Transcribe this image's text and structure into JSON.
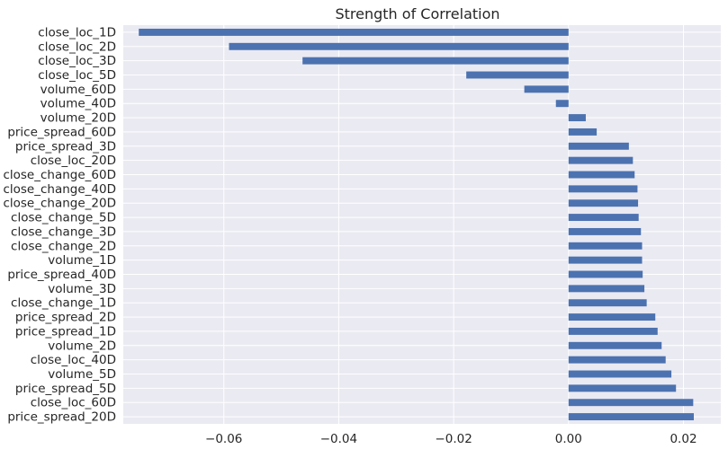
{
  "chart_data": {
    "type": "bar",
    "orientation": "horizontal",
    "title": "Strength of Correlation",
    "xlabel": "",
    "ylabel": "",
    "xlim": [
      -0.0775,
      0.0265
    ],
    "xticks": [
      -0.06,
      -0.04,
      -0.02,
      0.0,
      0.02
    ],
    "xtick_labels": [
      "−0.06",
      "−0.04",
      "−0.02",
      "0.00",
      "0.02"
    ],
    "grid": true,
    "legend": "none",
    "bar_color": "#4c72b0",
    "background_color": "#eaeaf2",
    "grid_color": "#ffffff",
    "categories": [
      "close_loc_1D",
      "close_loc_2D",
      "close_loc_3D",
      "close_loc_5D",
      "volume_60D",
      "volume_40D",
      "volume_20D",
      "price_spread_60D",
      "price_spread_3D",
      "close_loc_20D",
      "close_change_60D",
      "close_change_40D",
      "close_change_20D",
      "close_change_5D",
      "close_change_3D",
      "close_change_2D",
      "volume_1D",
      "price_spread_40D",
      "volume_3D",
      "close_change_1D",
      "price_spread_2D",
      "price_spread_1D",
      "volume_2D",
      "close_loc_40D",
      "volume_5D",
      "price_spread_5D",
      "close_loc_60D",
      "price_spread_20D"
    ],
    "values": [
      -0.0748,
      -0.0591,
      -0.0463,
      -0.0178,
      -0.0077,
      -0.0022,
      0.003,
      0.0049,
      0.0105,
      0.0112,
      0.0115,
      0.012,
      0.0121,
      0.0122,
      0.0126,
      0.0128,
      0.0128,
      0.0129,
      0.0132,
      0.0136,
      0.0151,
      0.0155,
      0.0162,
      0.0169,
      0.0179,
      0.0187,
      0.0217,
      0.0218
    ]
  }
}
